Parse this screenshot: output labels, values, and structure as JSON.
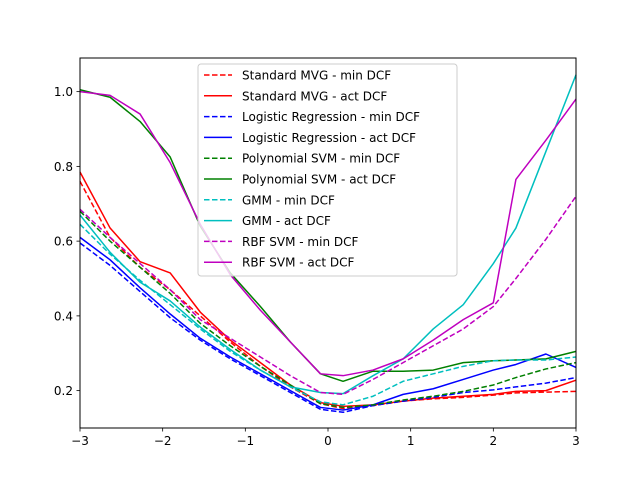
{
  "chart_data": {
    "type": "line",
    "title": "",
    "xlabel": "",
    "ylabel": "",
    "xlim": [
      -3,
      3
    ],
    "ylim": [
      0.1,
      1.09
    ],
    "xticks": [
      -3,
      -2,
      -1,
      0,
      1,
      2,
      3
    ],
    "xtick_labels": [
      "−3",
      "−2",
      "−1",
      "0",
      "1",
      "2",
      "3"
    ],
    "yticks": [
      0.2,
      0.4,
      0.6,
      0.8,
      1.0
    ],
    "ytick_labels": [
      "0.2",
      "0.4",
      "0.6",
      "0.8",
      "1.0"
    ],
    "grid": false,
    "legend_position": "top-center",
    "x": [
      -3.0,
      -2.636,
      -2.273,
      -1.909,
      -1.545,
      -1.182,
      -0.818,
      -0.455,
      -0.091,
      0.182,
      0.545,
      0.909,
      1.273,
      1.636,
      2.0,
      2.273,
      2.636,
      3.0
    ],
    "series": [
      {
        "name": "Standard MVG  - min DCF",
        "color": "#ff0000",
        "dash": true,
        "values": [
          0.76,
          0.61,
          0.53,
          0.47,
          0.4,
          0.33,
          0.265,
          0.21,
          0.165,
          0.152,
          0.16,
          0.172,
          0.178,
          0.182,
          0.188,
          0.194,
          0.196,
          0.198
        ]
      },
      {
        "name": "Standard MVG  - act DCF",
        "color": "#ff0000",
        "dash": false,
        "values": [
          0.785,
          0.635,
          0.545,
          0.515,
          0.41,
          0.335,
          0.275,
          0.215,
          0.168,
          0.158,
          0.162,
          0.172,
          0.18,
          0.185,
          0.19,
          0.198,
          0.2,
          0.228
        ]
      },
      {
        "name": "Logistic Regression  - min DCF",
        "color": "#0000ff",
        "dash": true,
        "values": [
          0.595,
          0.535,
          0.465,
          0.395,
          0.335,
          0.285,
          0.24,
          0.195,
          0.15,
          0.142,
          0.16,
          0.172,
          0.182,
          0.195,
          0.202,
          0.21,
          0.22,
          0.235
        ]
      },
      {
        "name": "Logistic Regression  - act DCF",
        "color": "#0000ff",
        "dash": false,
        "values": [
          0.61,
          0.55,
          0.475,
          0.405,
          0.34,
          0.29,
          0.245,
          0.2,
          0.155,
          0.148,
          0.162,
          0.19,
          0.205,
          0.23,
          0.255,
          0.27,
          0.298,
          0.262
        ]
      },
      {
        "name": "Polynomial SVM  - min DCF",
        "color": "#008000",
        "dash": true,
        "values": [
          0.68,
          0.6,
          0.53,
          0.46,
          0.38,
          0.32,
          0.265,
          0.215,
          0.165,
          0.155,
          0.162,
          0.175,
          0.185,
          0.198,
          0.215,
          0.235,
          0.258,
          0.275
        ]
      },
      {
        "name": "Polynomial SVM  - act DCF",
        "color": "#008000",
        "dash": false,
        "values": [
          1.005,
          0.985,
          0.92,
          0.825,
          0.64,
          0.515,
          0.425,
          0.33,
          0.245,
          0.225,
          0.252,
          0.252,
          0.255,
          0.275,
          0.28,
          0.282,
          0.285,
          0.305
        ]
      },
      {
        "name": "GMM  - min DCF",
        "color": "#00bfbf",
        "dash": true,
        "values": [
          0.645,
          0.565,
          0.495,
          0.43,
          0.365,
          0.305,
          0.255,
          0.21,
          0.17,
          0.162,
          0.185,
          0.225,
          0.245,
          0.265,
          0.28,
          0.282,
          0.282,
          0.29
        ]
      },
      {
        "name": "GMM  - act DCF",
        "color": "#00bfbf",
        "dash": false,
        "values": [
          0.67,
          0.57,
          0.49,
          0.44,
          0.37,
          0.31,
          0.255,
          0.21,
          0.195,
          0.192,
          0.24,
          0.285,
          0.365,
          0.43,
          0.54,
          0.635,
          0.84,
          1.045
        ]
      },
      {
        "name": "RBF SVM  - min DCF",
        "color": "#bf00bf",
        "dash": true,
        "values": [
          0.685,
          0.61,
          0.54,
          0.47,
          0.39,
          0.34,
          0.29,
          0.24,
          0.195,
          0.19,
          0.23,
          0.275,
          0.32,
          0.365,
          0.425,
          0.5,
          0.605,
          0.72
        ]
      },
      {
        "name": "RBF SVM  - act DCF",
        "color": "#bf00bf",
        "dash": false,
        "values": [
          1.0,
          0.99,
          0.94,
          0.81,
          0.645,
          0.51,
          0.415,
          0.33,
          0.245,
          0.24,
          0.255,
          0.285,
          0.335,
          0.39,
          0.435,
          0.765,
          0.87,
          0.98
        ]
      }
    ]
  }
}
